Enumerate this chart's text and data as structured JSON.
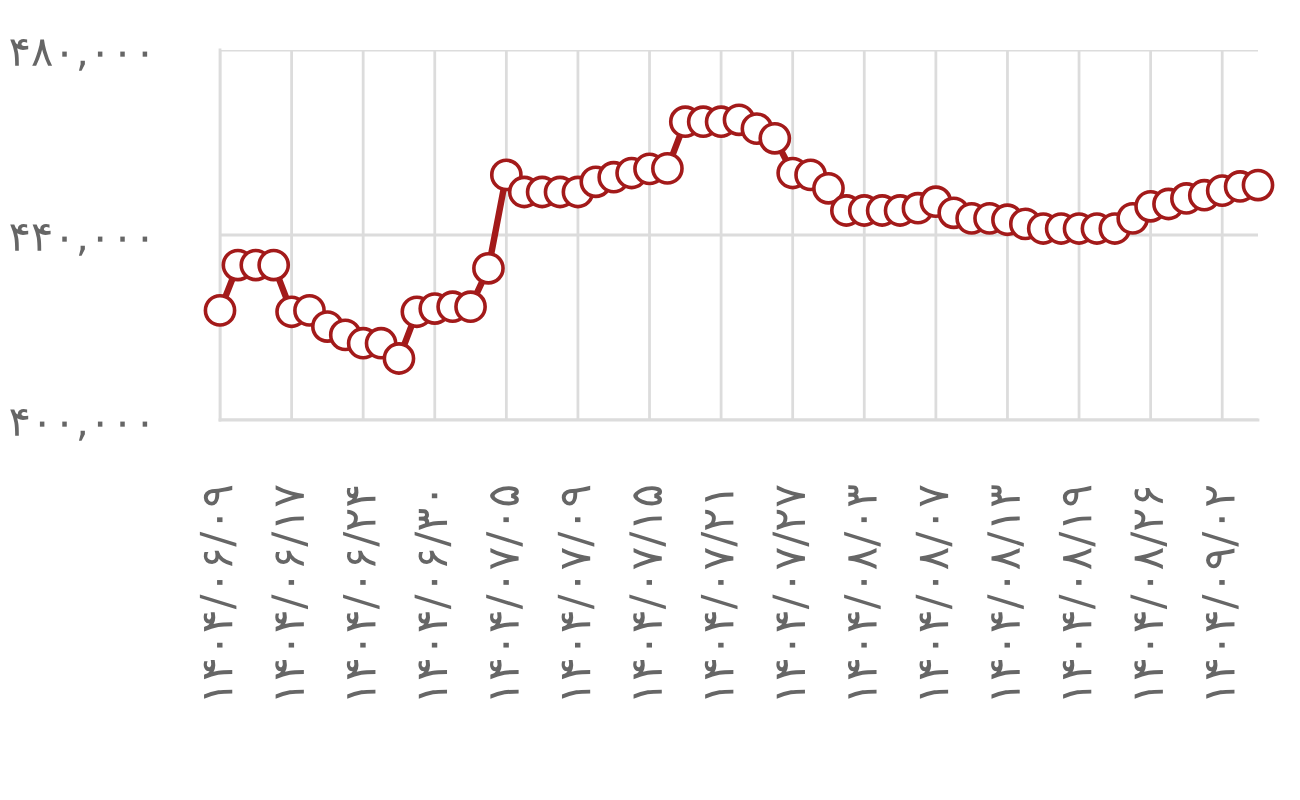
{
  "chart_data": {
    "type": "line",
    "categories": [
      "۱۴۰۴/۰۶/۰۹",
      null,
      null,
      null,
      "۱۴۰۴/۰۶/۱۷",
      null,
      null,
      null,
      "۱۴۰۴/۰۶/۲۴",
      null,
      null,
      null,
      "۱۴۰۴/۰۶/۳۰",
      null,
      null,
      null,
      "۱۴۰۴/۰۷/۰۵",
      null,
      null,
      null,
      "۱۴۰۴/۰۷/۰۹",
      null,
      null,
      null,
      "۱۴۰۴/۰۷/۱۵",
      null,
      null,
      null,
      "۱۴۰۴/۰۷/۲۱",
      null,
      null,
      null,
      "۱۴۰۴/۰۷/۲۷",
      null,
      null,
      null,
      "۱۴۰۴/۰۸/۰۳",
      null,
      null,
      null,
      "۱۴۰۴/۰۸/۰۷",
      null,
      null,
      null,
      "۱۴۰۴/۰۸/۱۳",
      null,
      null,
      null,
      "۱۴۰۴/۰۸/۱۹",
      null,
      null,
      null,
      "۱۴۰۴/۰۸/۲۶",
      null,
      null,
      null,
      "۱۴۰۴/۰۹/۰۲",
      null,
      null
    ],
    "series": [
      {
        "color": "#a31a1a",
        "values": [
          423700,
          433500,
          433500,
          433500,
          423400,
          423700,
          420200,
          418400,
          416600,
          416600,
          413300,
          423400,
          424100,
          424500,
          424500,
          432800,
          453000,
          449300,
          449300,
          449300,
          449300,
          451500,
          452500,
          453400,
          454300,
          454400,
          464500,
          464500,
          464500,
          464900,
          463000,
          460900,
          453400,
          453000,
          450100,
          445300,
          445300,
          445300,
          445300,
          445800,
          447200,
          444800,
          443600,
          443600,
          443300,
          442400,
          441400,
          441400,
          441400,
          441400,
          441400,
          443600,
          446200,
          446700,
          447900,
          448600,
          449600,
          450500,
          450800
        ]
      }
    ],
    "ylim": [
      400000,
      480000
    ],
    "yticks": [
      {
        "value": 400000,
        "label": "۴۰۰,۰۰۰"
      },
      {
        "value": 440000,
        "label": "۴۴۰,۰۰۰"
      },
      {
        "value": 480000,
        "label": "۴۸۰,۰۰۰"
      }
    ],
    "grid": true,
    "marker": "circle",
    "line_style": "solid"
  }
}
